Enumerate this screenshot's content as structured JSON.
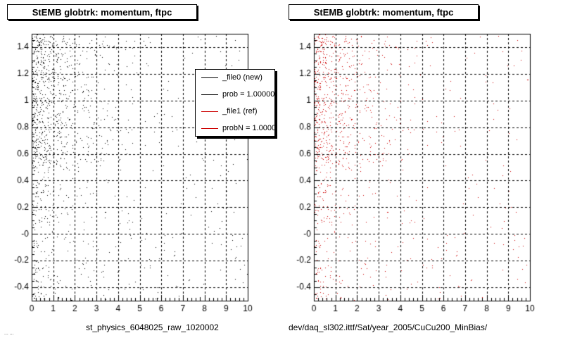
{
  "chart_data": [
    {
      "type": "scatter",
      "title": "StEMB globtrk: momentum, ftpc",
      "xlabel": "st_physics_6048025_raw_1020002",
      "ylabel": "",
      "xlim": [
        0,
        10
      ],
      "ylim": [
        -0.5,
        1.5
      ],
      "x_ticks": [
        "0",
        "1",
        "2",
        "3",
        "4",
        "5",
        "6",
        "7",
        "8",
        "9",
        "10"
      ],
      "y_ticks": [
        "-0.4",
        "-0.2",
        "-0",
        "0.2",
        "0.4",
        "0.6",
        "0.8",
        "1",
        "1.2",
        "1.4"
      ],
      "grid": true,
      "point_color": "#000000",
      "density_profile": "dense at low x (0–1.5), concentrated at y 0.5–1.5, sparse elsewhere",
      "legend": {
        "placement": "top-right",
        "entries": [
          {
            "label": "_file0 (new)",
            "color": "#000000"
          },
          {
            "label": "prob = 1.000000",
            "color": "#000000"
          },
          {
            "label": "_file1 (ref)",
            "color": "#cc0000"
          },
          {
            "label": "probN = 1.000000",
            "color": "#cc0000"
          }
        ]
      }
    },
    {
      "type": "scatter",
      "title": "StEMB globtrk: momentum, ftpc",
      "xlabel": "dev/daq_sl302.ittf/Sat/year_2005/CuCu200_MinBias/",
      "ylabel": "",
      "xlim": [
        0,
        10
      ],
      "ylim": [
        -0.5,
        1.5
      ],
      "x_ticks": [
        "0",
        "1",
        "2",
        "3",
        "4",
        "5",
        "6",
        "7",
        "8",
        "9",
        "10"
      ],
      "y_ticks": [
        "-0.4",
        "-0.2",
        "-0",
        "0.2",
        "0.4",
        "0.6",
        "0.8",
        "1",
        "1.2",
        "1.4"
      ],
      "grid": true,
      "point_color": "#cc0000",
      "density_profile": "dense at low x (0–1.5), concentrated at y 0.5–1.5, sparse elsewhere"
    }
  ],
  "footer": "... ..."
}
